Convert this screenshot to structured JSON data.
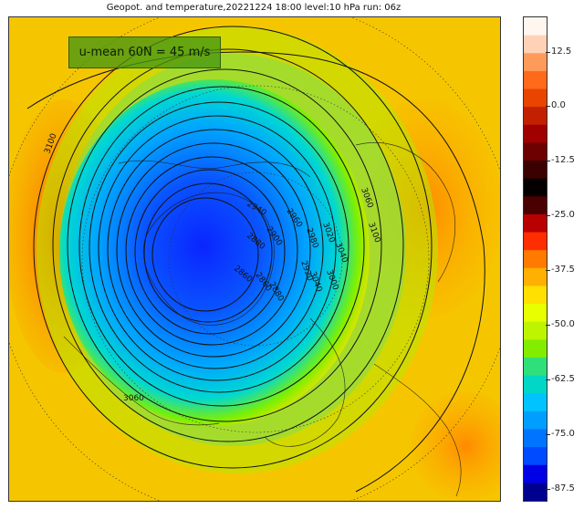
{
  "title": "Geopot. and temperature,20221224 18:00 level:10 hPa run: 06z",
  "badge": "u-mean 60N = 45 m/s",
  "contour_labels": [
    "3100",
    "3060",
    "3040",
    "3020",
    "3000",
    "2980",
    "2960",
    "2940",
    "2920",
    "2900",
    "2880",
    "2860",
    "2860",
    "2880",
    "3040",
    "3060",
    "3100"
  ],
  "colorbar": {
    "ticks": [
      "12.5",
      "0.0",
      "-12.5",
      "-25.0",
      "-37.5",
      "-50.0",
      "-62.5",
      "-75.0",
      "-87.5"
    ],
    "colors": [
      "#fff6ef",
      "#ffd2b8",
      "#ff9b5a",
      "#ff6a1a",
      "#e94400",
      "#c22000",
      "#a00000",
      "#6d0000",
      "#3b0000",
      "#050000",
      "#4a0000",
      "#b90000",
      "#ff2e00",
      "#ff7a00",
      "#ffb000",
      "#ffe000",
      "#e8ff00",
      "#bdf500",
      "#83ed00",
      "#2fe07a",
      "#00d7c7",
      "#00c3ff",
      "#009fff",
      "#0073ff",
      "#004aff",
      "#0000e6",
      "#000090"
    ]
  }
}
